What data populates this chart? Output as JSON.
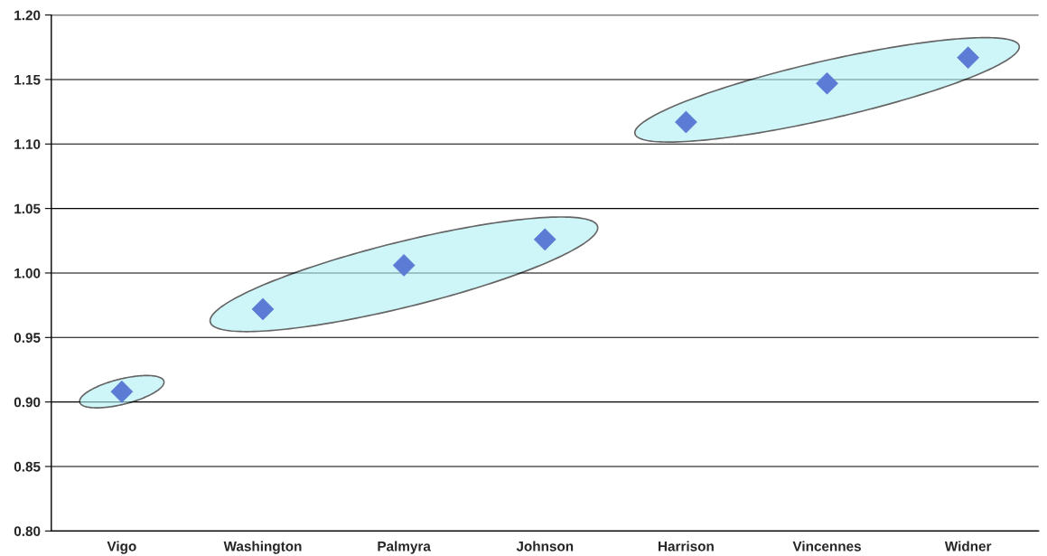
{
  "chart_data": {
    "type": "scatter",
    "categories": [
      "Vigo",
      "Washington",
      "Palmyra",
      "Johnson",
      "Harrison",
      "Vincennes",
      "Widner"
    ],
    "values": [
      0.908,
      0.972,
      1.006,
      1.026,
      1.117,
      1.147,
      1.167
    ],
    "color": "#5b7bd5",
    "marker": "diamond",
    "ylim": [
      0.8,
      1.2
    ],
    "yticks": [
      {
        "value": 0.8,
        "label": "0.80"
      },
      {
        "value": 0.85,
        "label": "0.85"
      },
      {
        "value": 0.9,
        "label": "0.90"
      },
      {
        "value": 0.95,
        "label": "0.95"
      },
      {
        "value": 1.0,
        "label": "1.00"
      },
      {
        "value": 1.05,
        "label": "1.05"
      },
      {
        "value": 1.1,
        "label": "1.10"
      },
      {
        "value": 1.15,
        "label": "1.15"
      },
      {
        "value": 1.2,
        "label": "1.20"
      }
    ],
    "grid": "y",
    "legend": false
  }
}
